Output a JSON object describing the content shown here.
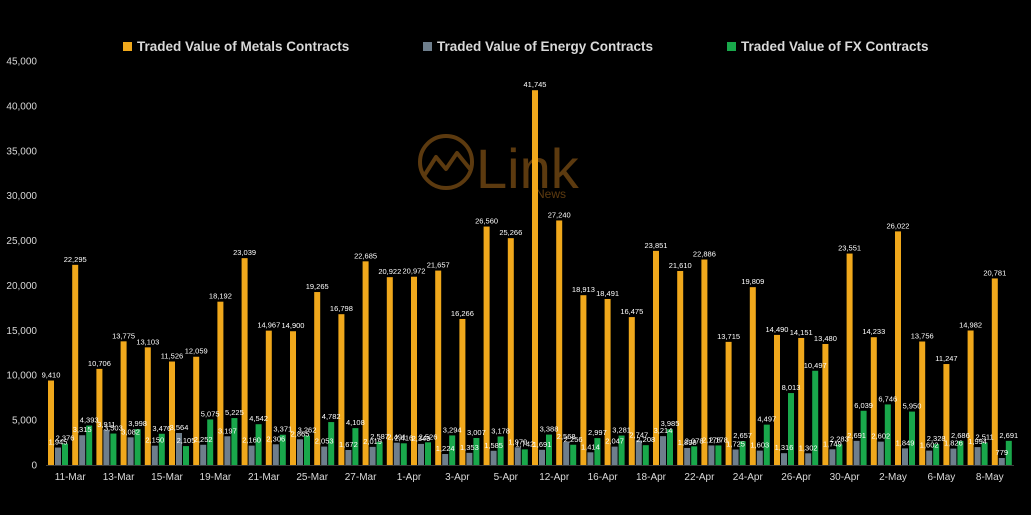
{
  "chart_data": {
    "type": "bar",
    "categories": [
      "11-Mar",
      "",
      "13-Mar",
      "",
      "15-Mar",
      "",
      "19-Mar",
      "",
      "21-Mar",
      "",
      "25-Mar",
      "",
      "27-Mar",
      "",
      "1-Apr",
      "",
      "3-Apr",
      "",
      "5-Apr",
      "",
      "12-Apr",
      "",
      "16-Apr",
      "",
      "18-Apr",
      "",
      "22-Apr",
      "",
      "24-Apr",
      "",
      "26-Apr",
      "",
      "30-Apr",
      "",
      "2-May",
      "",
      "6-May",
      "",
      "8-May",
      ""
    ],
    "series": [
      {
        "name": "Traded Value of Metals Contracts",
        "color": "#F0A81C",
        "values": [
          9410,
          22295,
          10706,
          13775,
          13103,
          11526,
          12059,
          18192,
          23039,
          14967,
          14900,
          19265,
          16798,
          22685,
          20922,
          20972,
          21657,
          16266,
          26560,
          25266,
          41745,
          27240,
          18913,
          18491,
          16475,
          23851,
          21610,
          22886,
          13715,
          19809,
          14490,
          14151,
          13480,
          23551,
          14233,
          26022,
          13756,
          11247,
          14982,
          20781
        ]
      },
      {
        "name": "Traded Value of Energy Contracts",
        "color": "#6E7E8C",
        "values": [
          1945,
          3315,
          3911,
          3082,
          2150,
          3564,
          2252,
          3197,
          2160,
          2306,
          2865,
          2053,
          1672,
          2019,
          2491,
          2349,
          1224,
          1353,
          1585,
          1970,
          1691,
          2568,
          1414,
          2047,
          2747,
          3214,
          1898,
          2178,
          1725,
          1603,
          1316,
          1302,
          1749,
          2691,
          2602,
          1849,
          1602,
          1826,
          1994,
          779
        ]
      },
      {
        "name": "Traded Value of FX Contracts",
        "color": "#19A84B",
        "values": [
          2376,
          4393,
          3503,
          3998,
          3476,
          2105,
          5075,
          5225,
          4542,
          3371,
          3262,
          4782,
          4108,
          2587,
          2416,
          2526,
          3294,
          3007,
          3178,
          1742,
          3388,
          2256,
          2997,
          3281,
          2208,
          3985,
          2078,
          2178,
          2657,
          4497,
          8013,
          10497,
          2283,
          6039,
          6746,
          5950,
          2328,
          2686,
          2511,
          2691
        ]
      }
    ],
    "ylim": [
      0,
      45000
    ],
    "yticks": [
      "0",
      "5,000",
      "10,000",
      "15,000",
      "20,000",
      "25,000",
      "30,000",
      "35,000",
      "40,000",
      "45,000"
    ],
    "legend": "top",
    "grid": false,
    "data_labels": true
  },
  "watermark": {
    "logo_text": "Link",
    "logo_subtext": "News"
  }
}
